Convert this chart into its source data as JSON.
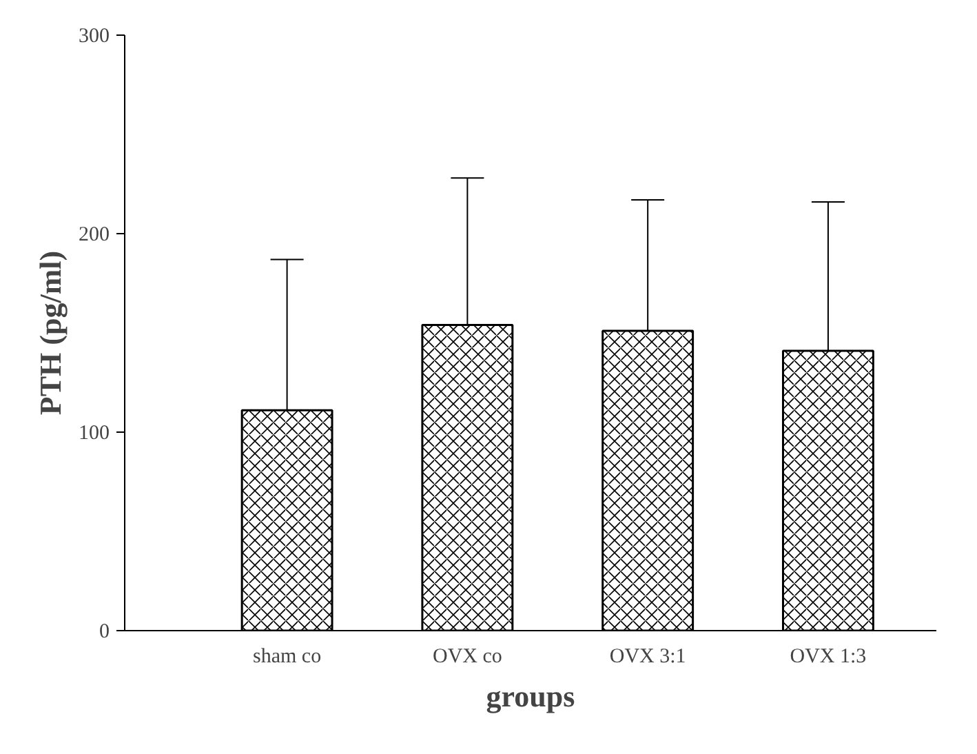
{
  "chart_data": {
    "type": "bar",
    "xlabel": "groups",
    "ylabel": "PTH (pg/ml)",
    "categories": [
      "sham co",
      "OVX co",
      "OVX 3:1",
      "OVX 1:3"
    ],
    "values": [
      111,
      154,
      151,
      141
    ],
    "errors": [
      [
        111,
        187
      ],
      [
        154,
        228
      ],
      [
        151,
        217
      ],
      [
        141,
        216
      ]
    ],
    "color": "#ffffff",
    "ylim": [
      0,
      300
    ],
    "yticks": [
      0,
      100,
      200,
      300
    ],
    "grid": false
  }
}
